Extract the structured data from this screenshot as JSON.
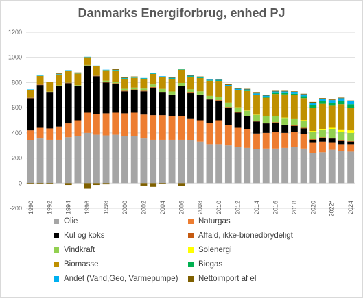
{
  "chart_data": {
    "type": "bar",
    "stacked": true,
    "title": "Danmarks Energiforbrug, enhed PJ",
    "xlabel": "",
    "ylabel": "",
    "ylim": [
      -200,
      1200
    ],
    "yticks": [
      -200,
      0,
      200,
      400,
      600,
      800,
      1000,
      1200
    ],
    "grid": true,
    "legend_position": "bottom",
    "categories": [
      1990,
      1991,
      1992,
      1993,
      1994,
      1995,
      1996,
      1997,
      1998,
      1999,
      2000,
      2001,
      2002,
      2003,
      2004,
      2005,
      2006,
      2007,
      2008,
      2009,
      2010,
      2011,
      2012,
      2013,
      2014,
      2015,
      2016,
      2017,
      2018,
      2019,
      2020,
      2021,
      2022,
      2023,
      2024
    ],
    "tick_labels": [
      "1990",
      "",
      "1992",
      "",
      "1994",
      "",
      "1996",
      "",
      "1998",
      "",
      "2000",
      "",
      "2002",
      "",
      "2004",
      "",
      "2006",
      "",
      "2008",
      "",
      "2010",
      "",
      "2012",
      "",
      "2014",
      "",
      "2016",
      "",
      "2018",
      "",
      "2020",
      "",
      "2022*",
      "",
      "2024"
    ],
    "series": [
      {
        "name": "Olie",
        "color": "#a5a5a5",
        "values": [
          340,
          355,
          345,
          345,
          365,
          375,
          400,
          385,
          380,
          385,
          375,
          375,
          355,
          345,
          345,
          345,
          345,
          340,
          330,
          310,
          310,
          300,
          290,
          280,
          270,
          275,
          275,
          280,
          285,
          275,
          240,
          245,
          265,
          255,
          250
        ]
      },
      {
        "name": "Naturgas",
        "color": "#ed7d31",
        "values": [
          80,
          85,
          90,
          105,
          110,
          125,
          160,
          165,
          175,
          175,
          180,
          185,
          190,
          195,
          195,
          190,
          190,
          175,
          170,
          170,
          190,
          160,
          150,
          150,
          125,
          125,
          130,
          120,
          120,
          115,
          80,
          85,
          55,
          55,
          60
        ]
      },
      {
        "name": "Kul og koks",
        "color": "#000000",
        "values": [
          255,
          340,
          285,
          320,
          320,
          270,
          370,
          300,
          245,
          230,
          175,
          180,
          185,
          220,
          180,
          165,
          235,
          200,
          200,
          185,
          155,
          140,
          120,
          100,
          95,
          75,
          75,
          60,
          50,
          45,
          25,
          30,
          35,
          25,
          20
        ]
      },
      {
        "name": "Affald, ikke-bionedbrydeligt",
        "color": "#c55a11",
        "values": [
          5,
          5,
          5,
          5,
          5,
          5,
          5,
          5,
          5,
          5,
          5,
          5,
          5,
          5,
          5,
          5,
          5,
          5,
          5,
          5,
          5,
          5,
          5,
          5,
          5,
          5,
          5,
          5,
          5,
          5,
          5,
          5,
          5,
          5,
          5
        ]
      },
      {
        "name": "Vindkraft",
        "color": "#92d050",
        "values": [
          2,
          2,
          3,
          3,
          4,
          4,
          4,
          7,
          10,
          11,
          15,
          15,
          17,
          20,
          24,
          24,
          22,
          26,
          25,
          24,
          28,
          35,
          37,
          40,
          47,
          51,
          46,
          53,
          50,
          57,
          59,
          57,
          70,
          68,
          65
        ]
      },
      {
        "name": "Solenergi",
        "color": "#ffff00",
        "values": [
          0,
          0,
          0,
          0,
          0,
          0,
          0,
          0,
          0,
          0,
          0,
          0,
          0,
          0,
          0,
          0,
          0,
          0,
          0,
          0,
          0,
          0,
          1,
          2,
          2,
          3,
          3,
          3,
          4,
          4,
          6,
          8,
          10,
          14,
          20
        ]
      },
      {
        "name": "Biomasse",
        "color": "#bf9000",
        "values": [
          60,
          65,
          75,
          85,
          90,
          92,
          62,
          67,
          82,
          90,
          80,
          77,
          78,
          83,
          95,
          100,
          105,
          100,
          105,
          120,
          125,
          130,
          135,
          155,
          155,
          145,
          175,
          185,
          185,
          175,
          185,
          200,
          175,
          205,
          180
        ]
      },
      {
        "name": "Biogas",
        "color": "#00b050",
        "values": [
          1,
          1,
          1,
          1,
          1,
          1,
          1,
          2,
          2,
          2,
          2,
          2,
          2,
          2,
          2,
          3,
          3,
          3,
          3,
          3,
          3,
          4,
          4,
          4,
          5,
          6,
          8,
          10,
          12,
          15,
          18,
          22,
          24,
          25,
          27
        ]
      },
      {
        "name": "Andet (Vand,Geo, Varmepumpe)",
        "color": "#00b0f0",
        "values": [
          3,
          3,
          3,
          3,
          3,
          3,
          3,
          3,
          3,
          3,
          4,
          4,
          4,
          4,
          4,
          5,
          5,
          5,
          5,
          6,
          6,
          7,
          8,
          9,
          10,
          11,
          12,
          13,
          14,
          15,
          17,
          19,
          21,
          23,
          25
        ]
      },
      {
        "name": "Nettoimport af el",
        "color": "#7f6000",
        "values": [
          -5,
          -5,
          -5,
          5,
          -15,
          5,
          -45,
          -15,
          -10,
          5,
          5,
          5,
          -20,
          -30,
          -5,
          5,
          -25,
          5,
          5,
          5,
          5,
          5,
          5,
          5,
          5,
          5,
          5,
          5,
          5,
          5,
          10,
          5,
          5,
          5,
          5
        ]
      }
    ]
  }
}
